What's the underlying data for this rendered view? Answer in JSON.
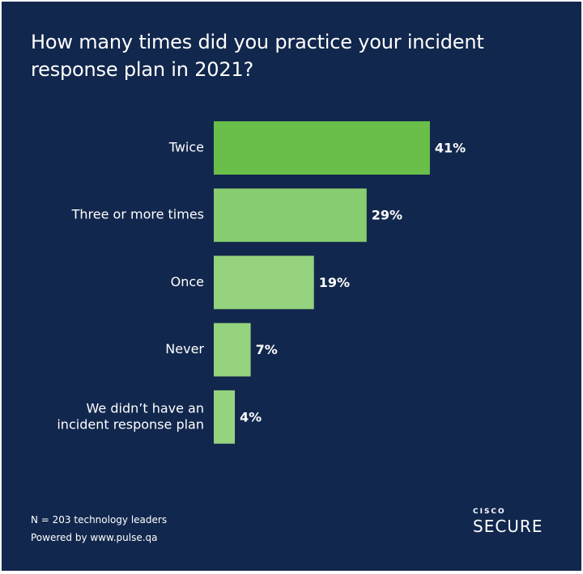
{
  "chart_data": {
    "type": "bar",
    "orientation": "horizontal",
    "title": "How many times did you practice your incident response plan in 2021?",
    "categories": [
      [
        "Twice"
      ],
      [
        "Three or more times"
      ],
      [
        "Once"
      ],
      [
        "Never"
      ],
      [
        "We didn’t have an",
        "incident response plan"
      ]
    ],
    "values": [
      41,
      29,
      19,
      7,
      4
    ],
    "value_labels": [
      "41%",
      "29%",
      "19%",
      "7%",
      "4%"
    ],
    "unit": "%",
    "xlim": [
      0,
      45
    ],
    "grid": false,
    "legend": "none",
    "colors": [
      "#6abf4b",
      "#88cd70",
      "#96d37f",
      "#96d37f",
      "#96d37f"
    ],
    "background": "#12274d"
  },
  "footnote": {
    "sample": "N = 203 technology leaders",
    "powered_by": "Powered by www.pulse.qa"
  },
  "logo": {
    "brand": "CISCO",
    "product": "SECURE"
  }
}
